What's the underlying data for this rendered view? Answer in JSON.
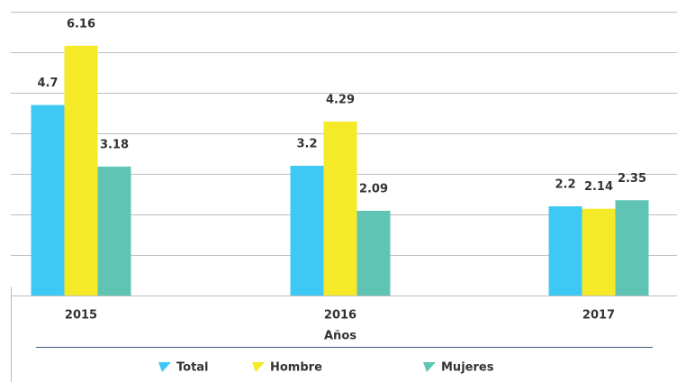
{
  "chart_data": {
    "type": "bar",
    "categories": [
      "2015",
      "2016",
      "2017"
    ],
    "series": [
      {
        "name": "Total",
        "color": "#3ec8f4",
        "values": [
          4.7,
          3.2,
          2.2
        ]
      },
      {
        "name": "Hombre",
        "color": "#f5ea28",
        "values": [
          6.16,
          4.29,
          2.14
        ]
      },
      {
        "name": "Mujeres",
        "color": "#5fc4b4",
        "values": [
          3.18,
          2.09,
          2.35
        ]
      }
    ],
    "x_label": "Años",
    "ylim": [
      0,
      7
    ],
    "yticks": [
      0,
      1,
      2,
      3,
      4,
      5,
      6,
      7
    ],
    "grid": true,
    "legend": "bottom"
  }
}
